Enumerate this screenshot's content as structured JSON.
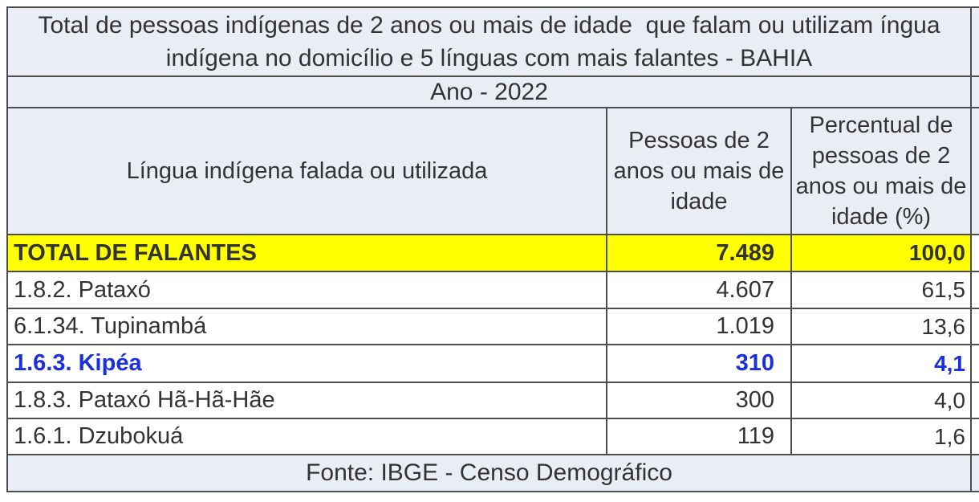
{
  "table": {
    "title": "Total de pessoas indígenas de 2 anos ou mais de idade  que falam ou utilizam íngua indígena no domicílio e 5 línguas com mais falantes - BAHIA",
    "year_label": "Ano - 2022",
    "columns": {
      "language": "Língua indígena falada ou utilizada",
      "people": "Pessoas de 2 anos ou mais de idade",
      "percent": "Percentual de pessoas de 2 anos ou mais de idade (%)"
    },
    "total_row": {
      "label": "TOTAL DE FALANTES",
      "people": "7.489",
      "percent": "100,0"
    },
    "rows": [
      {
        "label": "1.8.2. Pataxó",
        "people": "4.607",
        "percent": "61,5"
      },
      {
        "label": "6.1.34. Tupinambá",
        "people": "1.019",
        "percent": "13,6"
      },
      {
        "label": "1.6.3. Kipéa",
        "people": "310",
        "percent": "4,1"
      },
      {
        "label": "1.8.3. Pataxó Hã-Hã-Hãe",
        "people": "300",
        "percent": "4,0"
      },
      {
        "label": "1.6.1. Dzubokuá",
        "people": "119",
        "percent": "1,6"
      }
    ],
    "source": "Fonte: IBGE - Censo Demográfico"
  },
  "colors": {
    "panel_bg": "#e9eef5",
    "row_bg": "#ffffff",
    "total_bg": "#ffff00",
    "border": "#4d4d4d",
    "text": "#333333",
    "highlight_blue": "#1a2fdf"
  },
  "chart_data": {
    "type": "table",
    "title": "Total de pessoas indígenas de 2 anos ou mais de idade  que falam ou utilizam íngua indígena no domicílio e 5 línguas com mais falantes - BAHIA",
    "subtitle": "Ano - 2022",
    "columns": [
      "Língua indígena falada ou utilizada",
      "Pessoas de 2 anos ou mais de idade",
      "Percentual de pessoas de 2 anos ou mais de idade (%)"
    ],
    "rows": [
      [
        "TOTAL DE FALANTES",
        7489,
        100.0
      ],
      [
        "1.8.2. Pataxó",
        4607,
        61.5
      ],
      [
        "6.1.34. Tupinambá",
        1019,
        13.6
      ],
      [
        "1.6.3. Kipéa",
        310,
        4.1
      ],
      [
        "1.8.3. Pataxó Hã-Hã-Hãe",
        300,
        4.0
      ],
      [
        "1.6.1. Dzubokuá",
        119,
        1.6
      ]
    ],
    "highlighted_rows": [
      "TOTAL DE FALANTES (yellow)",
      "1.6.3. Kipéa (blue)"
    ],
    "source": "Fonte: IBGE - Censo Demográfico"
  }
}
